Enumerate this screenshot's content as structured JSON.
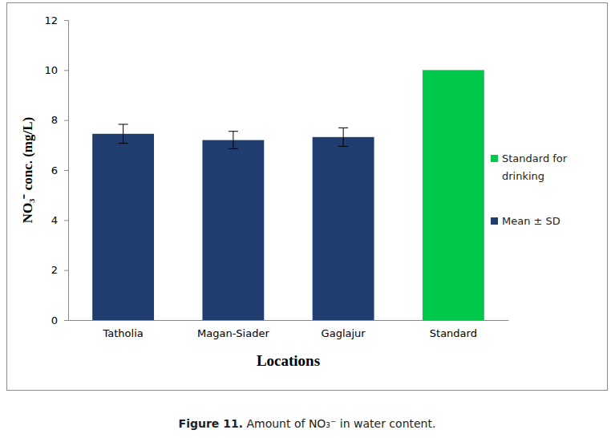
{
  "chart_data": {
    "type": "bar",
    "x_label": "Locations",
    "y_label": "NO₃⁻ conc. (mg/L)",
    "annotations": [
      "Figure 11.",
      "Amount of NO₃⁻ in water content."
    ],
    "categories": [
      "Tatholia",
      "Magan-Siader",
      "Gaglajur",
      "Standard"
    ],
    "series": [
      {
        "name": "Standard for drinking",
        "color": "#00c84a",
        "values": [
          null,
          null,
          null,
          10
        ]
      },
      {
        "name": "Mean ± SD",
        "color": "#1f3d6e",
        "values": [
          7.45,
          7.2,
          7.32,
          null
        ],
        "errors": [
          0.38,
          0.35,
          0.37,
          null
        ]
      }
    ],
    "ylim": [
      0,
      12
    ],
    "yticks": [
      0,
      2,
      4,
      6,
      8,
      10,
      12
    ],
    "grid": false,
    "legend": "right"
  }
}
